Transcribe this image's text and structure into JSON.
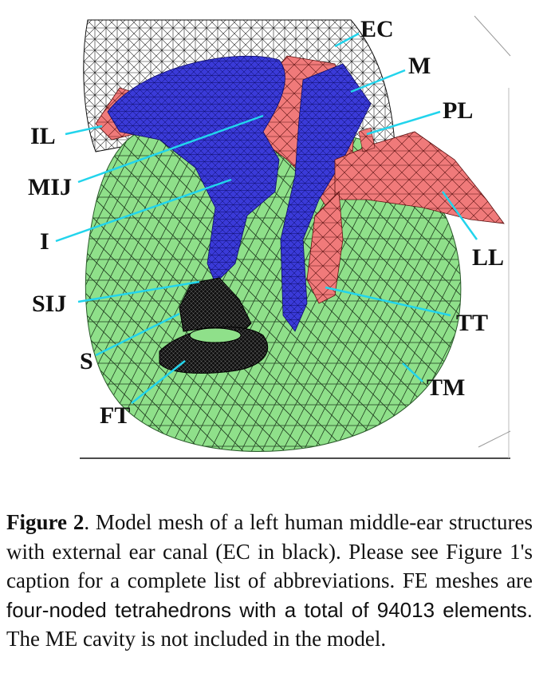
{
  "figure": {
    "labels": {
      "ec": "EC",
      "m": "M",
      "pl": "PL",
      "il": "IL",
      "mij": "MIJ",
      "i": "I",
      "ll": "LL",
      "sij": "SIJ",
      "tt": "TT",
      "s": "S",
      "tm": "TM",
      "ft": "FT"
    },
    "colors": {
      "mesh_black": "#111111",
      "tympanic_green": "#8fe08a",
      "ossicle_blue": "#3a3ad8",
      "ligament_red": "#f07a7a",
      "leader_cyan": "#22d4ec"
    }
  },
  "caption": {
    "label": "Figure 2",
    "part1": ". Model mesh of a left human middle-ear structures with external ear canal (EC in black). Please see Figure 1's caption for a complete list of abbreviations. FE meshes are ",
    "part2": "four-noded tetrahedrons with a total of 94013 elements.",
    "part3": " The ME cavity is not included in the model."
  }
}
